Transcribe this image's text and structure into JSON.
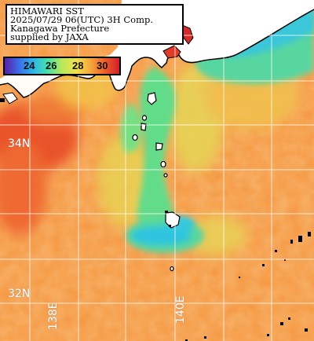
{
  "header": {
    "line1": "HIMAWARI SST",
    "line2": "2025/07/29 06(UTC) 3H Comp.",
    "line3": "Kanagawa Prefecture",
    "line4": "supplied by JAXA"
  },
  "colorbar": {
    "ticks": [
      "24",
      "26",
      "28",
      "30"
    ],
    "colors": [
      "#5a1fa8",
      "#3b6ee8",
      "#2fb6e8",
      "#47e0a8",
      "#b8e85a",
      "#f2e250",
      "#f5a63a",
      "#ef5b2a",
      "#d11f2a"
    ]
  },
  "labels": {
    "lat_34": "34N",
    "lat_32": "32N",
    "lon_138": "138E",
    "lon_140": "140E"
  },
  "palette": {
    "land": "#ffffff",
    "warm_sea": "#f59a45",
    "hot_sea": "#ec5a2c",
    "cool_sea": "#4fdc9a",
    "cold_sea": "#2fc4e0",
    "grid": "#ffffff"
  }
}
